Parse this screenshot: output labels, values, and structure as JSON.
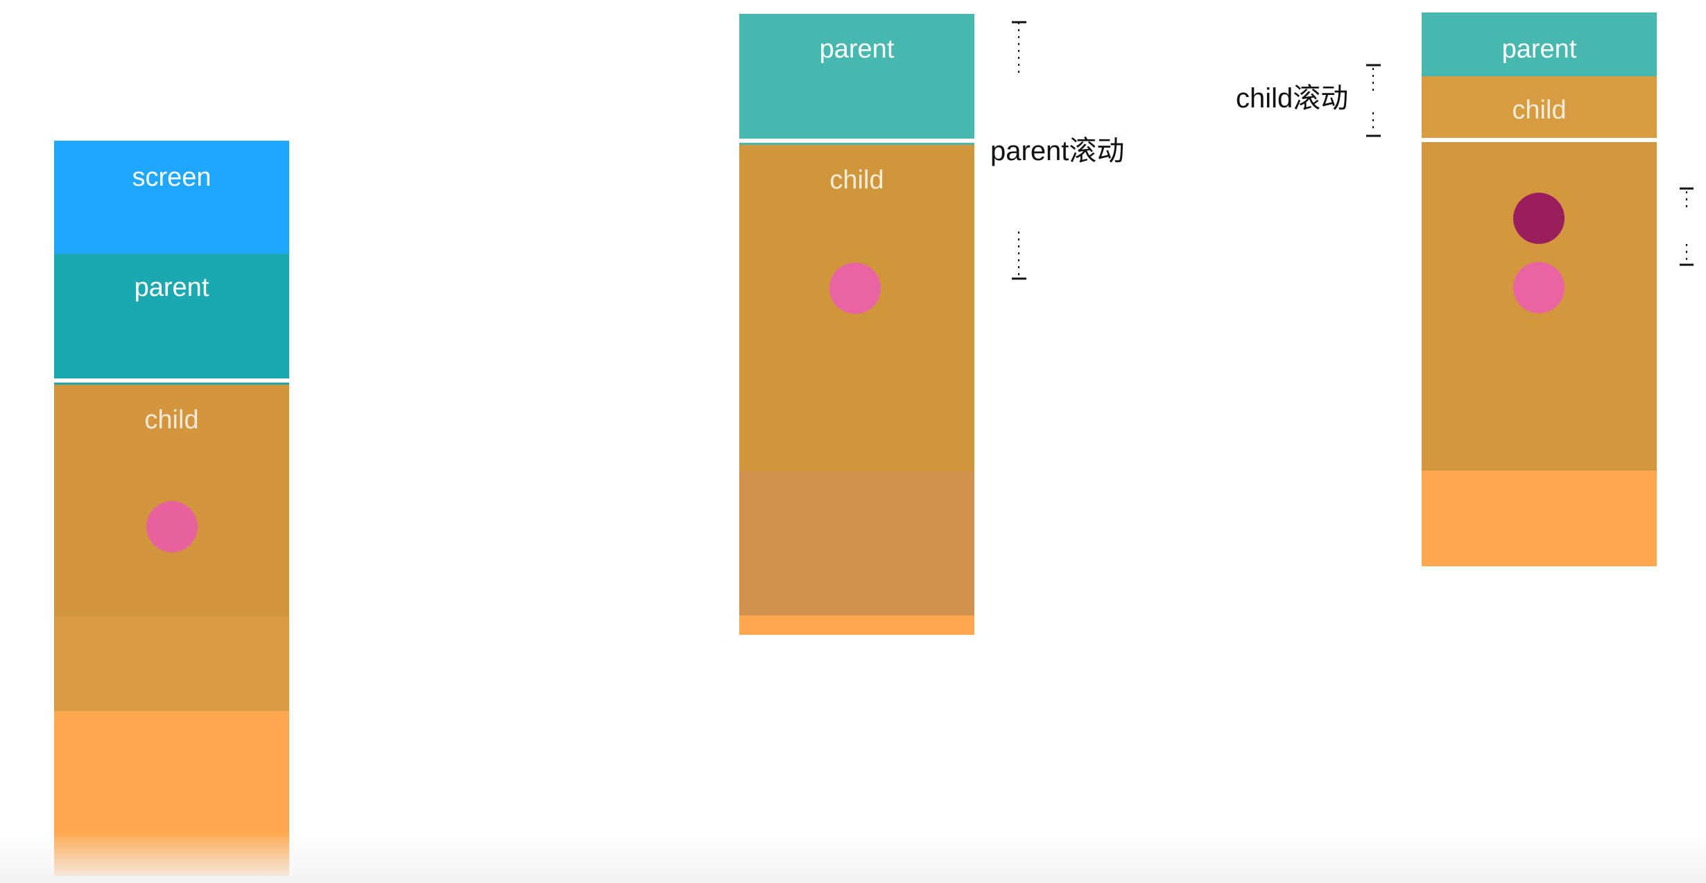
{
  "diagrams": [
    {
      "id": "initial",
      "blocks": {
        "screen": {
          "label": "screen",
          "color": "#1ea7fd"
        },
        "parent": {
          "label": "parent",
          "color": "#1ca8b1"
        },
        "child": {
          "label": "child",
          "color": "#d3963e"
        },
        "child_lower": {
          "color": "#d99a43"
        },
        "parent_rest": {
          "color": "#ffa84f"
        }
      },
      "dot_colors": [
        "#e8629e"
      ]
    },
    {
      "id": "parent-scroll",
      "annotation": "parent滚动",
      "blocks": {
        "parent": {
          "label": "parent",
          "color": "#47b8b0"
        },
        "child": {
          "label": "child",
          "color": "#d0963c"
        },
        "child_lower": {
          "color": "#d1924e"
        },
        "parent_rest": {
          "color": "#ffa84f"
        }
      },
      "dot_colors": [
        "#ea63a2"
      ]
    },
    {
      "id": "child-scroll",
      "annotation": "child滚动",
      "blocks": {
        "parent": {
          "label": "parent",
          "color": "#47b8b0"
        },
        "child": {
          "label": "child",
          "color": "#d79b40"
        },
        "child_body": {
          "color": "#d3973d"
        },
        "parent_rest": {
          "color": "#ffa84f"
        }
      },
      "dot_colors": [
        "#9a1e5c",
        "#ea63a2"
      ]
    }
  ]
}
